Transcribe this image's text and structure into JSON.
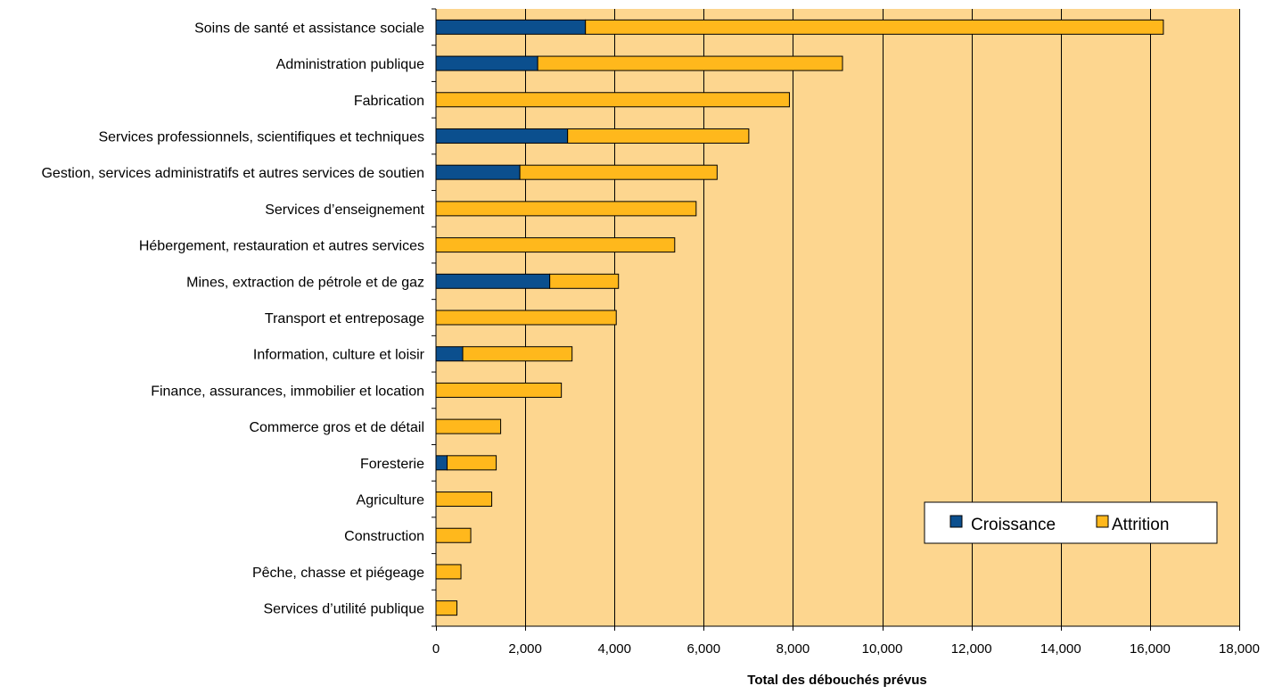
{
  "chart_data": {
    "type": "bar",
    "orientation": "horizontal",
    "stacked": true,
    "categories": [
      "Soins de santé et assistance sociale",
      "Administration publique",
      "Fabrication",
      "Services professionnels, scientifiques et techniques",
      "Gestion, services administratifs et autres services de soutien",
      "Services d’enseignement",
      "Hébergement, restauration et autres services",
      "Mines, extraction de pétrole et de gaz",
      "Transport et entreposage",
      "Information, culture et loisir",
      "Finance, assurances, immobilier et location",
      "Commerce gros et de détail",
      "Foresterie",
      "Agriculture",
      "Construction",
      "Pêche, chasse et piégeage",
      "Services d’utilité publique"
    ],
    "series": [
      {
        "name": "Croissance",
        "color": "#0b4f8e",
        "values": [
          3350,
          2280,
          0,
          2950,
          1880,
          0,
          0,
          2550,
          0,
          600,
          0,
          0,
          250,
          0,
          0,
          0,
          0
        ]
      },
      {
        "name": "Attrition",
        "color": "#ffb81c",
        "values": [
          12950,
          6830,
          7920,
          4060,
          4420,
          5830,
          5350,
          1540,
          4040,
          2450,
          2810,
          1450,
          1100,
          1250,
          780,
          560,
          470
        ]
      }
    ],
    "xlabel": "Total des débouchés prévus",
    "xlim": [
      0,
      18000
    ],
    "xticks": [
      0,
      2000,
      4000,
      6000,
      8000,
      10000,
      12000,
      14000,
      16000,
      18000
    ],
    "xtick_labels": [
      "0",
      "2,000",
      "4,000",
      "6,000",
      "8,000",
      "10,000",
      "12,000",
      "14,000",
      "16,000",
      "18,000"
    ],
    "grid": "vertical",
    "legend_position": "bottom-right",
    "plot_background": "#fdd68f"
  }
}
